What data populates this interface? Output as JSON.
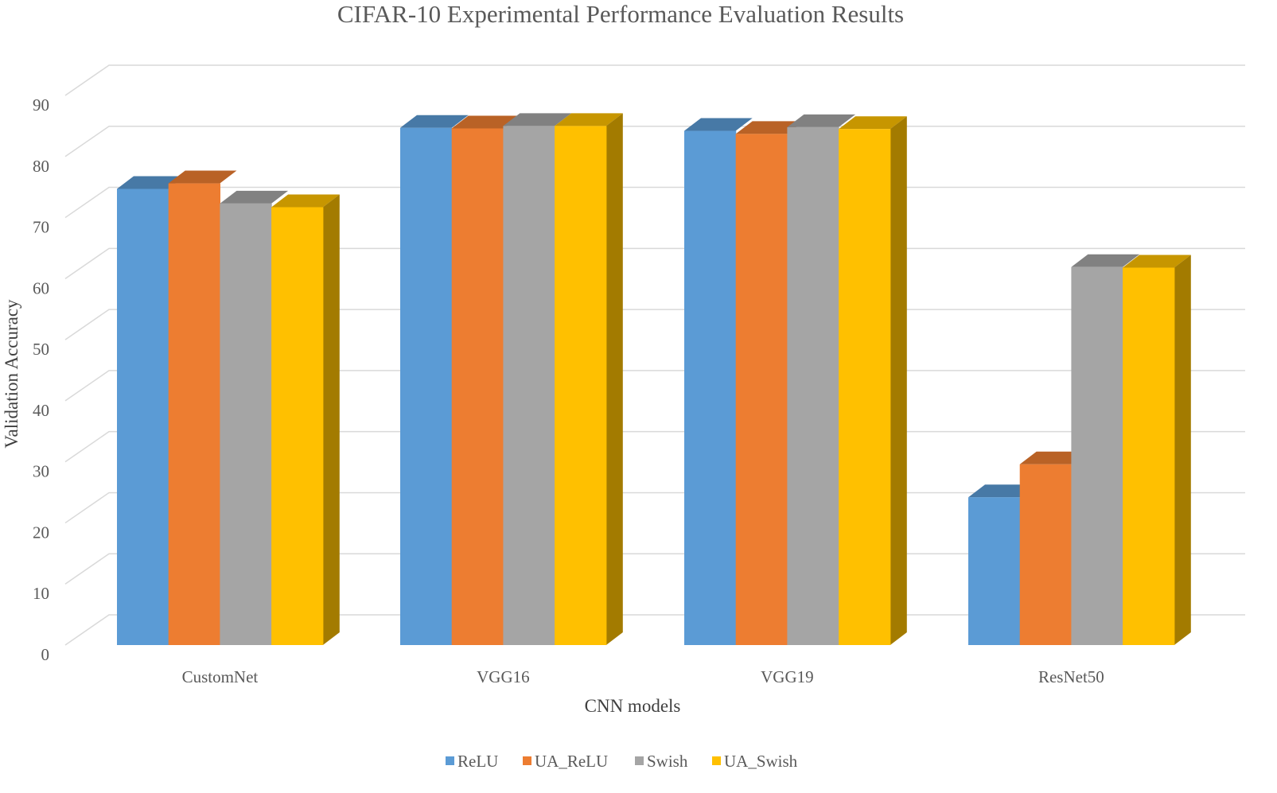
{
  "chart_data": {
    "type": "bar",
    "style": "3d-clustered-column",
    "title": "CIFAR-10 Experimental Performance Evaluation Results",
    "xlabel": "CNN models",
    "ylabel": "Validation Accuracy",
    "ylim": [
      0,
      90
    ],
    "yticks": [
      0,
      10,
      20,
      30,
      40,
      50,
      60,
      70,
      80,
      90
    ],
    "grid": true,
    "legend_position": "bottom",
    "categories": [
      "CustomNet",
      "VGG16",
      "VGG19",
      "ResNet50"
    ],
    "series": [
      {
        "name": "ReLU",
        "color": "#5b9bd5",
        "values": [
          74.7,
          84.7,
          84.2,
          24.2
        ]
      },
      {
        "name": "UA_ReLU",
        "color": "#ed7d31",
        "values": [
          75.6,
          84.6,
          83.7,
          29.6
        ]
      },
      {
        "name": "Swish",
        "color": "#a5a5a5",
        "values": [
          72.3,
          85.0,
          84.8,
          61.9
        ]
      },
      {
        "name": "UA_Swish",
        "color": "#ffc000",
        "values": [
          71.7,
          85.0,
          84.5,
          61.8
        ]
      }
    ]
  }
}
